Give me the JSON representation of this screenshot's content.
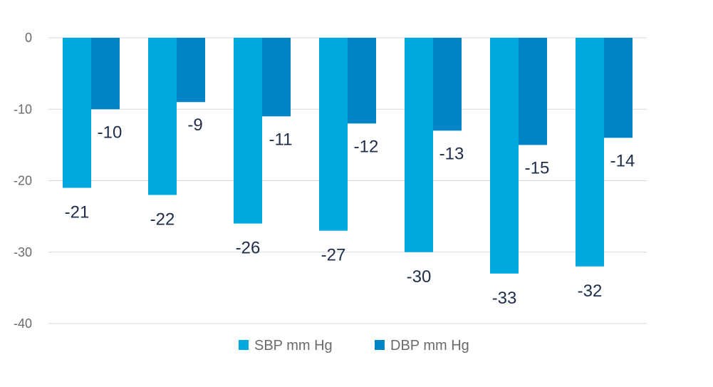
{
  "chart_data": {
    "type": "bar",
    "categories": [
      "",
      "",
      "",
      "",
      "",
      "",
      ""
    ],
    "series": [
      {
        "name": "SBP mm Hg",
        "color": "#00A9E0",
        "values": [
          -21,
          -22,
          -26,
          -27,
          -30,
          -33,
          -32
        ]
      },
      {
        "name": "DBP mm Hg",
        "color": "#0084C8",
        "values": [
          -10,
          -9,
          -11,
          -12,
          -13,
          -15,
          -14
        ]
      }
    ],
    "data_labels": {
      "sbp": [
        "-21",
        "-22",
        "-26",
        "-27",
        "-30",
        "-33",
        "-32"
      ],
      "dbp": [
        "-10",
        "-9",
        "-11",
        "-12",
        "-13",
        "-15",
        "-14"
      ]
    },
    "ylim": [
      -40,
      0
    ],
    "yticks": [
      "0",
      "-10",
      "-20",
      "-30",
      "-40"
    ],
    "ytick_values": [
      0,
      -10,
      -20,
      -30,
      -40
    ],
    "grid": true,
    "legend_position": "bottom-center",
    "title": "",
    "xlabel": "",
    "ylabel": ""
  }
}
